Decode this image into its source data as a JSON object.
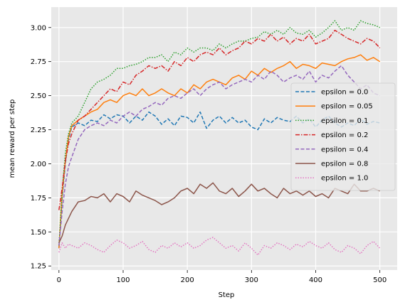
{
  "chart_data": {
    "type": "line",
    "xlabel": "Step",
    "ylabel": "mean reward per step",
    "xlim": [
      -12,
      527
    ],
    "ylim": [
      1.22,
      3.15
    ],
    "xticks": [
      0,
      100,
      200,
      300,
      400,
      500
    ],
    "yticks": [
      1.25,
      1.5,
      1.75,
      2.0,
      2.25,
      2.5,
      2.75,
      3.0
    ],
    "ytick_labels": [
      "1.25",
      "1.50",
      "1.75",
      "2.00",
      "2.25",
      "2.50",
      "2.75",
      "3.00"
    ],
    "grid": true,
    "background": "#e8e8e8",
    "legend_placement": "center-right",
    "series": [
      {
        "name": "epsilon = 0.0",
        "color": "#1f77b4",
        "dash": "dashed",
        "x": [
          0,
          5,
          10,
          15,
          20,
          30,
          40,
          50,
          60,
          70,
          80,
          90,
          100,
          110,
          120,
          130,
          140,
          150,
          160,
          170,
          180,
          190,
          200,
          210,
          220,
          230,
          240,
          250,
          260,
          270,
          280,
          290,
          300,
          310,
          320,
          330,
          340,
          350,
          360,
          370,
          380,
          390,
          400,
          410,
          420,
          430,
          440,
          450,
          460,
          470,
          480,
          490,
          500
        ],
        "y": [
          1.38,
          1.75,
          2.0,
          2.18,
          2.27,
          2.3,
          2.28,
          2.32,
          2.31,
          2.36,
          2.33,
          2.36,
          2.35,
          2.3,
          2.35,
          2.32,
          2.38,
          2.35,
          2.29,
          2.33,
          2.28,
          2.35,
          2.34,
          2.3,
          2.38,
          2.26,
          2.32,
          2.35,
          2.3,
          2.34,
          2.3,
          2.32,
          2.27,
          2.25,
          2.33,
          2.3,
          2.34,
          2.32,
          2.31,
          2.35,
          2.3,
          2.33,
          2.27,
          2.32,
          2.35,
          2.3,
          2.27,
          2.3,
          2.28,
          2.33,
          2.29,
          2.31,
          2.3
        ]
      },
      {
        "name": "epsilon = 0.05",
        "color": "#ff7f0e",
        "dash": "solid",
        "x": [
          0,
          5,
          10,
          15,
          20,
          30,
          40,
          50,
          60,
          70,
          80,
          90,
          100,
          110,
          120,
          130,
          140,
          150,
          160,
          170,
          180,
          190,
          200,
          210,
          220,
          230,
          240,
          250,
          260,
          270,
          280,
          290,
          300,
          310,
          320,
          330,
          340,
          350,
          360,
          370,
          380,
          390,
          400,
          410,
          420,
          430,
          440,
          450,
          460,
          470,
          480,
          490,
          500
        ],
        "y": [
          1.38,
          1.78,
          2.02,
          2.2,
          2.28,
          2.32,
          2.35,
          2.38,
          2.4,
          2.45,
          2.47,
          2.45,
          2.5,
          2.52,
          2.5,
          2.55,
          2.5,
          2.52,
          2.55,
          2.52,
          2.5,
          2.55,
          2.52,
          2.58,
          2.55,
          2.6,
          2.62,
          2.6,
          2.58,
          2.63,
          2.65,
          2.62,
          2.68,
          2.65,
          2.7,
          2.67,
          2.7,
          2.72,
          2.75,
          2.7,
          2.73,
          2.72,
          2.7,
          2.74,
          2.73,
          2.72,
          2.75,
          2.77,
          2.78,
          2.8,
          2.76,
          2.78,
          2.75
        ]
      },
      {
        "name": "epsilon = 0.1",
        "color": "#2ca02c",
        "dash": "dotted",
        "x": [
          0,
          5,
          10,
          15,
          20,
          30,
          40,
          50,
          60,
          70,
          80,
          90,
          100,
          110,
          120,
          130,
          140,
          150,
          160,
          170,
          180,
          190,
          200,
          210,
          220,
          230,
          240,
          250,
          260,
          270,
          280,
          290,
          300,
          310,
          320,
          330,
          340,
          350,
          360,
          370,
          380,
          390,
          400,
          410,
          420,
          430,
          440,
          450,
          460,
          470,
          480,
          490,
          500
        ],
        "y": [
          1.4,
          1.8,
          2.08,
          2.22,
          2.3,
          2.35,
          2.45,
          2.55,
          2.6,
          2.62,
          2.65,
          2.7,
          2.7,
          2.72,
          2.73,
          2.75,
          2.78,
          2.78,
          2.8,
          2.75,
          2.82,
          2.8,
          2.85,
          2.82,
          2.85,
          2.85,
          2.83,
          2.88,
          2.85,
          2.88,
          2.9,
          2.9,
          2.92,
          2.93,
          2.97,
          2.95,
          2.98,
          2.95,
          3.0,
          2.96,
          2.95,
          2.98,
          2.93,
          2.96,
          3.0,
          3.05,
          2.98,
          3.0,
          2.98,
          3.05,
          3.03,
          3.02,
          3.0
        ]
      },
      {
        "name": "epsilon = 0.2",
        "color": "#d62728",
        "dash": "dashdot",
        "x": [
          0,
          5,
          10,
          15,
          20,
          30,
          40,
          50,
          60,
          70,
          80,
          90,
          100,
          110,
          120,
          130,
          140,
          150,
          160,
          170,
          180,
          190,
          200,
          210,
          220,
          230,
          240,
          250,
          260,
          270,
          280,
          290,
          300,
          310,
          320,
          330,
          340,
          350,
          360,
          370,
          380,
          390,
          400,
          410,
          420,
          430,
          440,
          450,
          460,
          470,
          480,
          490,
          500
        ],
        "y": [
          1.66,
          1.82,
          2.02,
          2.15,
          2.22,
          2.32,
          2.35,
          2.4,
          2.45,
          2.5,
          2.55,
          2.53,
          2.6,
          2.58,
          2.65,
          2.68,
          2.72,
          2.7,
          2.72,
          2.68,
          2.75,
          2.72,
          2.78,
          2.75,
          2.8,
          2.82,
          2.8,
          2.85,
          2.8,
          2.83,
          2.85,
          2.9,
          2.88,
          2.92,
          2.9,
          2.95,
          2.9,
          2.93,
          2.88,
          2.92,
          2.9,
          2.95,
          2.88,
          2.9,
          2.92,
          2.98,
          2.95,
          2.92,
          2.9,
          2.88,
          2.92,
          2.9,
          2.85
        ]
      },
      {
        "name": "epsilon = 0.4",
        "color": "#9467bd",
        "dash": "dashed",
        "x": [
          0,
          5,
          10,
          15,
          20,
          30,
          40,
          50,
          60,
          70,
          80,
          90,
          100,
          110,
          120,
          130,
          140,
          150,
          160,
          170,
          180,
          190,
          200,
          210,
          220,
          230,
          240,
          250,
          260,
          270,
          280,
          290,
          300,
          310,
          320,
          330,
          340,
          350,
          360,
          370,
          380,
          390,
          400,
          410,
          420,
          430,
          440,
          450,
          460,
          470,
          480,
          490,
          500
        ],
        "y": [
          1.4,
          1.65,
          1.85,
          1.98,
          2.05,
          2.18,
          2.25,
          2.28,
          2.3,
          2.28,
          2.32,
          2.3,
          2.35,
          2.38,
          2.35,
          2.4,
          2.42,
          2.45,
          2.43,
          2.48,
          2.5,
          2.48,
          2.52,
          2.55,
          2.5,
          2.55,
          2.58,
          2.6,
          2.55,
          2.58,
          2.6,
          2.62,
          2.6,
          2.65,
          2.62,
          2.68,
          2.65,
          2.6,
          2.63,
          2.65,
          2.62,
          2.68,
          2.6,
          2.65,
          2.63,
          2.68,
          2.72,
          2.65,
          2.6,
          2.55,
          2.58,
          2.52,
          2.5
        ]
      },
      {
        "name": "epsilon = 0.8",
        "color": "#8c564b",
        "dash": "solid",
        "x": [
          0,
          5,
          10,
          15,
          20,
          30,
          40,
          50,
          60,
          70,
          80,
          90,
          100,
          110,
          120,
          130,
          140,
          150,
          160,
          170,
          180,
          190,
          200,
          210,
          220,
          230,
          240,
          250,
          260,
          270,
          280,
          290,
          300,
          310,
          320,
          330,
          340,
          350,
          360,
          370,
          380,
          390,
          400,
          410,
          420,
          430,
          440,
          450,
          460,
          470,
          480,
          490,
          500
        ],
        "y": [
          1.42,
          1.47,
          1.55,
          1.6,
          1.65,
          1.72,
          1.73,
          1.76,
          1.75,
          1.78,
          1.72,
          1.78,
          1.76,
          1.72,
          1.8,
          1.77,
          1.75,
          1.73,
          1.7,
          1.72,
          1.75,
          1.8,
          1.82,
          1.78,
          1.85,
          1.82,
          1.86,
          1.8,
          1.78,
          1.82,
          1.76,
          1.8,
          1.85,
          1.8,
          1.82,
          1.78,
          1.75,
          1.82,
          1.78,
          1.8,
          1.77,
          1.8,
          1.76,
          1.78,
          1.75,
          1.82,
          1.8,
          1.78,
          1.85,
          1.8,
          1.8,
          1.82,
          1.8
        ]
      },
      {
        "name": "epsilon = 1.0",
        "color": "#e377c2",
        "dash": "dotted",
        "x": [
          0,
          5,
          10,
          15,
          20,
          30,
          40,
          50,
          60,
          70,
          80,
          90,
          100,
          110,
          120,
          130,
          140,
          150,
          160,
          170,
          180,
          190,
          200,
          210,
          220,
          230,
          240,
          250,
          260,
          270,
          280,
          290,
          300,
          310,
          320,
          330,
          340,
          350,
          360,
          370,
          380,
          390,
          400,
          410,
          420,
          430,
          440,
          450,
          460,
          470,
          480,
          490,
          500
        ],
        "y": [
          1.35,
          1.42,
          1.38,
          1.41,
          1.4,
          1.38,
          1.42,
          1.4,
          1.37,
          1.35,
          1.4,
          1.44,
          1.42,
          1.38,
          1.4,
          1.43,
          1.37,
          1.35,
          1.4,
          1.38,
          1.42,
          1.39,
          1.42,
          1.38,
          1.4,
          1.44,
          1.46,
          1.42,
          1.38,
          1.4,
          1.36,
          1.42,
          1.38,
          1.33,
          1.4,
          1.38,
          1.42,
          1.4,
          1.37,
          1.41,
          1.39,
          1.43,
          1.4,
          1.38,
          1.42,
          1.37,
          1.35,
          1.4,
          1.38,
          1.34,
          1.4,
          1.43,
          1.38
        ]
      }
    ]
  }
}
